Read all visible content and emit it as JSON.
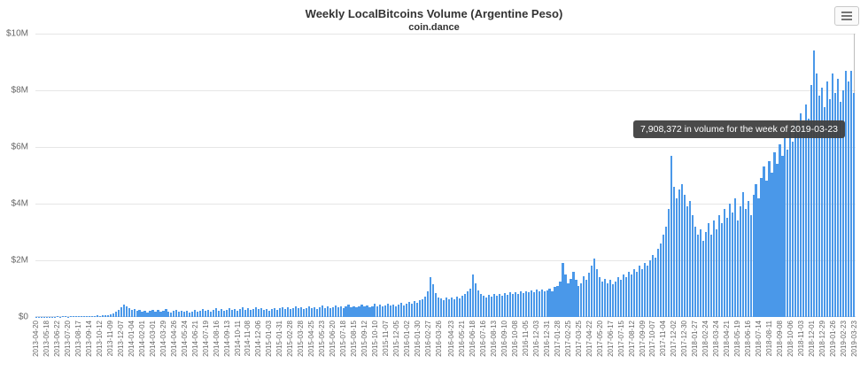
{
  "colors": {
    "bar": "#4a98e9",
    "grid": "#e6e6e6",
    "axis": "#d0d7e3",
    "text": "#666666",
    "tooltip_bg": "#404040"
  },
  "tooltip": {
    "text": "7,908,372 in volume for the week of 2019-03-23"
  },
  "export_menu": {
    "icon": "hamburger-icon"
  },
  "chart_data": {
    "type": "bar",
    "title": "Weekly LocalBitcoins Volume (Argentine Peso)",
    "subtitle": "coin.dance",
    "xlabel": "",
    "ylabel": "",
    "ylim": [
      0,
      10000000
    ],
    "grid": true,
    "legend": false,
    "hovered_point": {
      "date": "2019-03-23",
      "value": 7908372
    },
    "y_tick_labels": [
      "$10M",
      "$8M",
      "$6M",
      "$4M",
      "$2M",
      "$0"
    ],
    "x_tick_labels": [
      "2013-04-20",
      "2013-05-18",
      "2013-06-22",
      "2013-07-20",
      "2013-08-17",
      "2013-09-14",
      "2013-10-12",
      "2013-11-09",
      "2013-12-07",
      "2014-01-04",
      "2014-02-01",
      "2014-03-01",
      "2014-03-29",
      "2014-04-26",
      "2014-05-24",
      "2014-06-21",
      "2014-07-19",
      "2014-08-16",
      "2014-09-13",
      "2014-10-11",
      "2014-11-08",
      "2014-12-06",
      "2015-01-03",
      "2015-01-31",
      "2015-02-28",
      "2015-03-28",
      "2015-04-25",
      "2015-05-23",
      "2015-06-20",
      "2015-07-18",
      "2015-08-15",
      "2015-09-12",
      "2015-10-10",
      "2015-11-07",
      "2015-12-05",
      "2016-01-02",
      "2016-01-30",
      "2016-02-27",
      "2016-03-26",
      "2016-04-23",
      "2016-05-21",
      "2016-06-18",
      "2016-07-16",
      "2016-08-13",
      "2016-09-10",
      "2016-10-08",
      "2016-11-05",
      "2016-12-03",
      "2016-12-31",
      "2017-01-28",
      "2017-02-25",
      "2017-03-25",
      "2017-04-22",
      "2017-05-20",
      "2017-06-17",
      "2017-07-15",
      "2017-08-12",
      "2017-09-09",
      "2017-10-07",
      "2017-11-04",
      "2017-12-02",
      "2017-12-30",
      "2018-01-27",
      "2018-02-24",
      "2018-03-24",
      "2018-04-21",
      "2018-05-19",
      "2018-06-16",
      "2018-07-14",
      "2018-08-11",
      "2018-09-08",
      "2018-10-06",
      "2018-11-03",
      "2018-12-01",
      "2018-12-29",
      "2019-01-26",
      "2019-02-23",
      "2019-03-23"
    ],
    "values": [
      8000,
      5000,
      12000,
      7000,
      15000,
      10000,
      9000,
      14000,
      20000,
      12000,
      18000,
      25000,
      15000,
      22000,
      30000,
      20000,
      28000,
      35000,
      25000,
      40000,
      30000,
      45000,
      38000,
      50000,
      42000,
      60000,
      55000,
      70000,
      90000,
      120000,
      180000,
      260000,
      340000,
      430000,
      390000,
      310000,
      240000,
      280000,
      210000,
      250000,
      190000,
      230000,
      170000,
      210000,
      260000,
      200000,
      240000,
      180000,
      220000,
      270000,
      200000,
      160000,
      210000,
      250000,
      190000,
      230000,
      180000,
      220000,
      170000,
      200000,
      240000,
      190000,
      230000,
      280000,
      210000,
      250000,
      200000,
      240000,
      300000,
      230000,
      270000,
      210000,
      260000,
      320000,
      250000,
      290000,
      220000,
      270000,
      330000,
      260000,
      300000,
      240000,
      280000,
      340000,
      270000,
      310000,
      250000,
      290000,
      230000,
      280000,
      320000,
      260000,
      300000,
      350000,
      280000,
      330000,
      270000,
      310000,
      370000,
      300000,
      340000,
      280000,
      320000,
      380000,
      310000,
      350000,
      290000,
      330000,
      400000,
      320000,
      360000,
      300000,
      350000,
      420000,
      340000,
      380000,
      310000,
      360000,
      430000,
      350000,
      390000,
      330000,
      380000,
      450000,
      370000,
      410000,
      340000,
      390000,
      460000,
      380000,
      430000,
      360000,
      410000,
      480000,
      400000,
      450000,
      380000,
      430000,
      500000,
      420000,
      470000,
      520000,
      480000,
      550000,
      500000,
      580000,
      640000,
      720000,
      900000,
      1400000,
      1150000,
      850000,
      700000,
      650000,
      600000,
      680000,
      620000,
      700000,
      640000,
      720000,
      660000,
      740000,
      800000,
      900000,
      1000000,
      1500000,
      1200000,
      950000,
      800000,
      750000,
      700000,
      780000,
      720000,
      800000,
      740000,
      820000,
      760000,
      840000,
      780000,
      860000,
      800000,
      880000,
      820000,
      900000,
      840000,
      920000,
      860000,
      940000,
      880000,
      960000,
      900000,
      980000,
      920000,
      950000,
      1000000,
      900000,
      1050000,
      1100000,
      1250000,
      1900000,
      1500000,
      1200000,
      1350000,
      1600000,
      1300000,
      1100000,
      1200000,
      1450000,
      1300000,
      1550000,
      1800000,
      2050000,
      1700000,
      1400000,
      1250000,
      1350000,
      1200000,
      1300000,
      1150000,
      1250000,
      1400000,
      1300000,
      1500000,
      1400000,
      1600000,
      1500000,
      1700000,
      1600000,
      1800000,
      1700000,
      1900000,
      1800000,
      2000000,
      2200000,
      2100000,
      2400000,
      2600000,
      2900000,
      3200000,
      3800000,
      5700000,
      4600000,
      4200000,
      4500000,
      4700000,
      4300000,
      3900000,
      4100000,
      3600000,
      3200000,
      2900000,
      3100000,
      2700000,
      3000000,
      3300000,
      2900000,
      3400000,
      3100000,
      3600000,
      3300000,
      3800000,
      3500000,
      4000000,
      3700000,
      4200000,
      3400000,
      3900000,
      4400000,
      3800000,
      4100000,
      3600000,
      4300000,
      4700000,
      4200000,
      4900000,
      5300000,
      4800000,
      5500000,
      5100000,
      5800000,
      5400000,
      6100000,
      5700000,
      6300000,
      5900000,
      6600000,
      6200000,
      6900000,
      6500000,
      7200000,
      6800000,
      7500000,
      7000000,
      8200000,
      9400000,
      8600000,
      7800000,
      8100000,
      7400000,
      8300000,
      7700000,
      8600000,
      7900000,
      8400000,
      7600000,
      8000000,
      8700000,
      8300000,
      8700000,
      7908372
    ]
  }
}
